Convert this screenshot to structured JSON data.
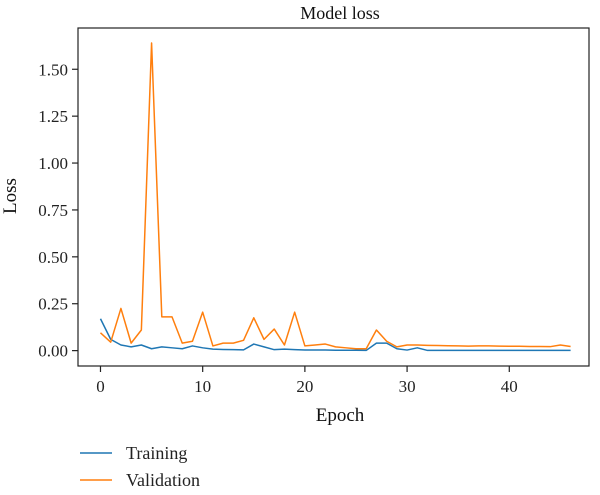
{
  "chart_data": {
    "type": "line",
    "title": "Model loss",
    "xlabel": "Epoch",
    "ylabel": "Loss",
    "xlim": [
      -2.2,
      47.8
    ],
    "ylim": [
      -0.082,
      1.72
    ],
    "x_ticks": [
      0,
      10,
      20,
      30,
      40
    ],
    "y_ticks": [
      0.0,
      0.25,
      0.5,
      0.75,
      1.0,
      1.25,
      1.5
    ],
    "y_tick_labels": [
      "0.00",
      "0.25",
      "0.50",
      "0.75",
      "1.00",
      "1.25",
      "1.50"
    ],
    "x_tick_labels": [
      "0",
      "10",
      "20",
      "30",
      "40"
    ],
    "grid": false,
    "legend_position": "bottom-left",
    "x": [
      0,
      1,
      2,
      3,
      4,
      5,
      6,
      7,
      8,
      9,
      10,
      11,
      12,
      13,
      14,
      15,
      16,
      17,
      18,
      19,
      20,
      21,
      22,
      23,
      24,
      25,
      26,
      27,
      28,
      29,
      30,
      31,
      32,
      33,
      34,
      35,
      36,
      37,
      38,
      39,
      40,
      41,
      42,
      43,
      44,
      45,
      46
    ],
    "series": [
      {
        "name": "Training",
        "color": "#1f77b4",
        "values": [
          0.17,
          0.06,
          0.03,
          0.02,
          0.03,
          0.01,
          0.02,
          0.015,
          0.01,
          0.025,
          0.015,
          0.008,
          0.006,
          0.005,
          0.004,
          0.035,
          0.02,
          0.005,
          0.008,
          0.005,
          0.003,
          0.003,
          0.003,
          0.002,
          0.002,
          0.002,
          0.001,
          0.04,
          0.04,
          0.01,
          0.003,
          0.015,
          0.001,
          0.001,
          0.001,
          0.001,
          0.001,
          0.001,
          0.001,
          0.001,
          0.001,
          0.001,
          0.001,
          0.001,
          0.001,
          0.001,
          0.001
        ]
      },
      {
        "name": "Validation",
        "color": "#ff7f0e",
        "values": [
          0.095,
          0.045,
          0.225,
          0.04,
          0.11,
          1.64,
          0.18,
          0.18,
          0.04,
          0.05,
          0.205,
          0.025,
          0.04,
          0.04,
          0.055,
          0.175,
          0.06,
          0.115,
          0.03,
          0.205,
          0.025,
          0.03,
          0.035,
          0.02,
          0.015,
          0.01,
          0.01,
          0.11,
          0.05,
          0.02,
          0.03,
          0.03,
          0.028,
          0.027,
          0.026,
          0.025,
          0.024,
          0.025,
          0.025,
          0.024,
          0.023,
          0.023,
          0.022,
          0.022,
          0.021,
          0.03,
          0.022
        ]
      }
    ]
  }
}
